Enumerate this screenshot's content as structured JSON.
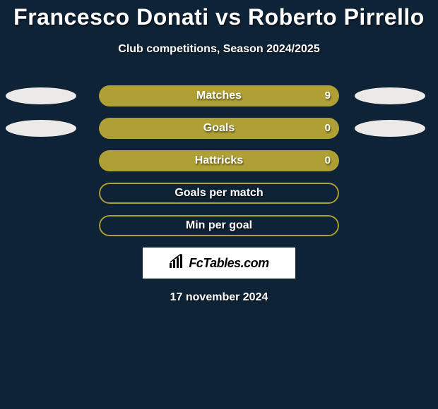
{
  "background_color": "#0f2336",
  "title_color": "#ffffff",
  "title": "Francesco Donati vs Roberto Pirrello",
  "title_fontsize": 32,
  "subtitle": "Club competitions, Season 2024/2025",
  "subtitle_fontsize": 16,
  "bar_color": "#aea034",
  "bar_border_color": "#aea034",
  "ellipse_left_color": "#eceae8",
  "ellipse_right_color": "#eceae8",
  "text_color": "#ffffff",
  "stats": [
    {
      "label": "Matches",
      "value": "9",
      "fill_pct": 100,
      "left_ellipse": true,
      "right_ellipse": true,
      "show_value": true
    },
    {
      "label": "Goals",
      "value": "0",
      "fill_pct": 100,
      "left_ellipse": true,
      "right_ellipse": true,
      "show_value": true
    },
    {
      "label": "Hattricks",
      "value": "0",
      "fill_pct": 100,
      "left_ellipse": false,
      "right_ellipse": false,
      "show_value": true
    },
    {
      "label": "Goals per match",
      "value": "",
      "fill_pct": 0,
      "left_ellipse": false,
      "right_ellipse": false,
      "show_value": false
    },
    {
      "label": "Min per goal",
      "value": "",
      "fill_pct": 0,
      "left_ellipse": false,
      "right_ellipse": false,
      "show_value": false
    }
  ],
  "logo_text": "FcTables.com",
  "date": "17 november 2024"
}
